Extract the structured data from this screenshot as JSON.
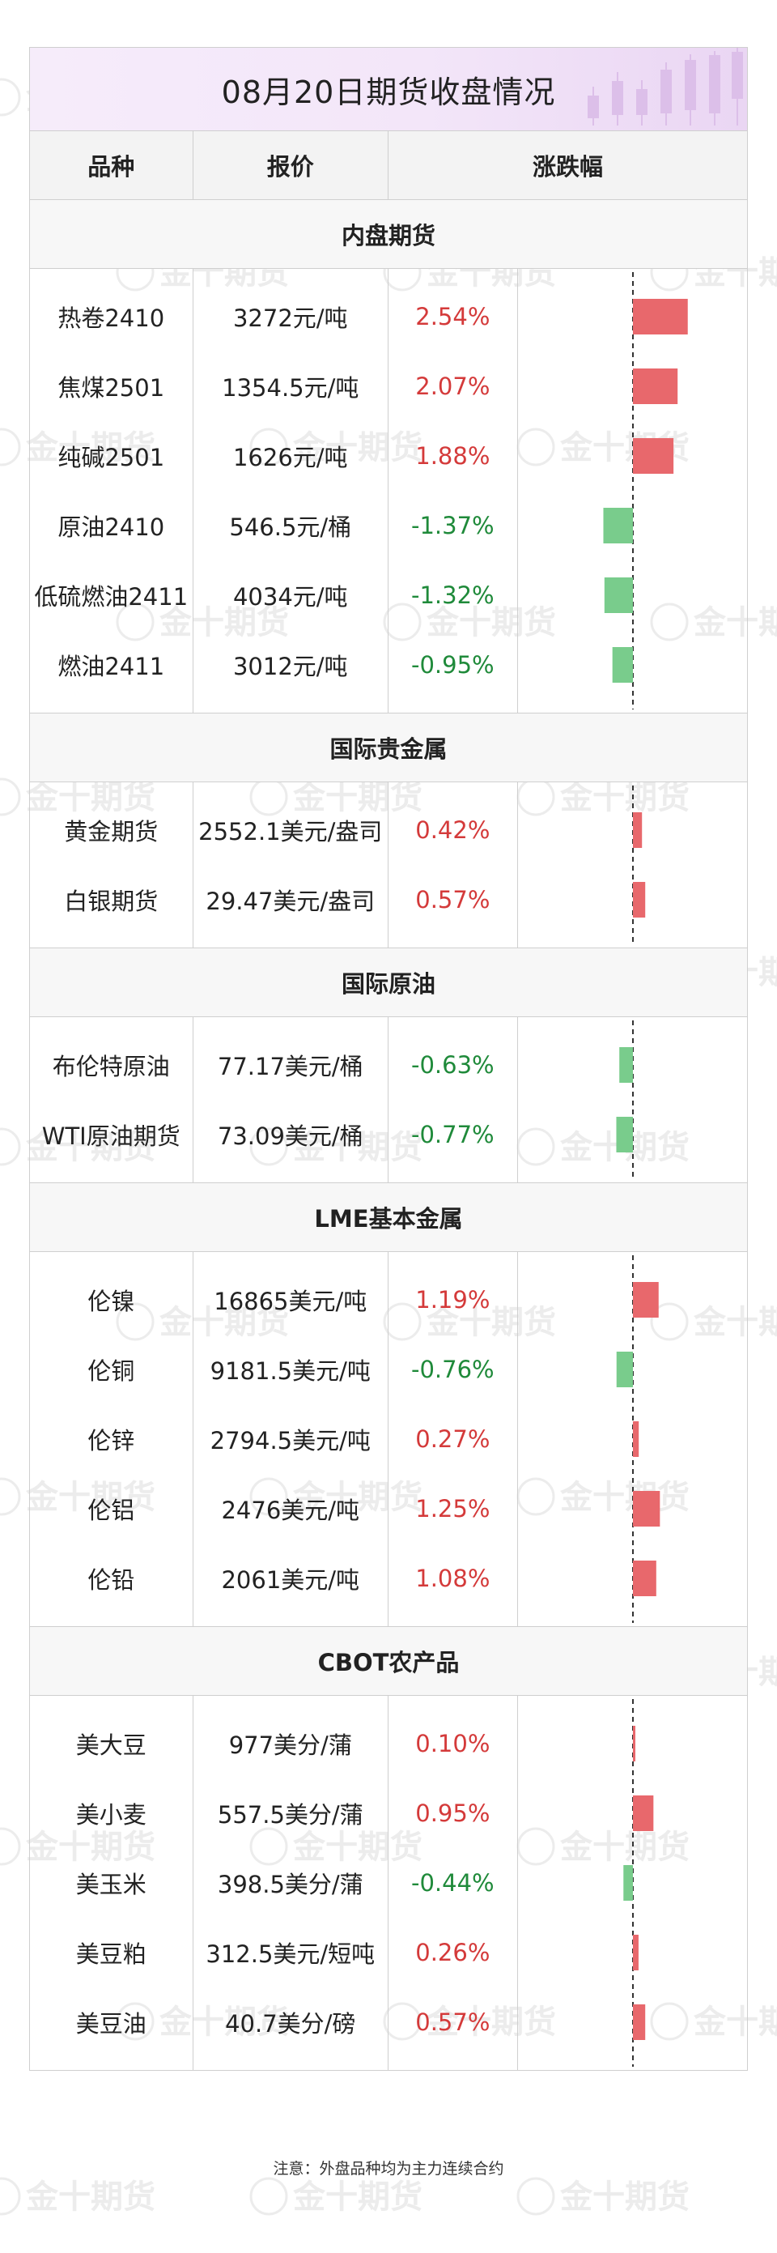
{
  "title": "08月20日期货收盘情况",
  "watermark": "金十期货",
  "header": {
    "col_name": "品种",
    "col_price": "报价",
    "col_change": "涨跌幅"
  },
  "colors": {
    "up": "#d43a3a",
    "down": "#1f8a3a",
    "bar_up": "#e8686c",
    "bar_down": "#79cc8c"
  },
  "bar_scale_max_pct": 3.0,
  "sections": [
    {
      "title": "内盘期货",
      "rows": [
        {
          "name": "热卷2410",
          "price": "3272元/吨",
          "change": "2.54%",
          "value": 2.54
        },
        {
          "name": "焦煤2501",
          "price": "1354.5元/吨",
          "change": "2.07%",
          "value": 2.07
        },
        {
          "name": "纯碱2501",
          "price": "1626元/吨",
          "change": "1.88%",
          "value": 1.88
        },
        {
          "name": "原油2410",
          "price": "546.5元/桶",
          "change": "-1.37%",
          "value": -1.37
        },
        {
          "name": "低硫燃油2411",
          "price": "4034元/吨",
          "change": "-1.32%",
          "value": -1.32
        },
        {
          "name": "燃油2411",
          "price": "3012元/吨",
          "change": "-0.95%",
          "value": -0.95
        }
      ]
    },
    {
      "title": "国际贵金属",
      "rows": [
        {
          "name": "黄金期货",
          "price": "2552.1美元/盎司",
          "change": "0.42%",
          "value": 0.42
        },
        {
          "name": "白银期货",
          "price": "29.47美元/盎司",
          "change": "0.57%",
          "value": 0.57
        }
      ]
    },
    {
      "title": "国际原油",
      "rows": [
        {
          "name": "布伦特原油",
          "price": "77.17美元/桶",
          "change": "-0.63%",
          "value": -0.63
        },
        {
          "name": "WTI原油期货",
          "price": "73.09美元/桶",
          "change": "-0.77%",
          "value": -0.77
        }
      ]
    },
    {
      "title": "LME基本金属",
      "rows": [
        {
          "name": "伦镍",
          "price": "16865美元/吨",
          "change": "1.19%",
          "value": 1.19
        },
        {
          "name": "伦铜",
          "price": "9181.5美元/吨",
          "change": "-0.76%",
          "value": -0.76
        },
        {
          "name": "伦锌",
          "price": "2794.5美元/吨",
          "change": "0.27%",
          "value": 0.27
        },
        {
          "name": "伦铝",
          "price": "2476美元/吨",
          "change": "1.25%",
          "value": 1.25
        },
        {
          "name": "伦铅",
          "price": "2061美元/吨",
          "change": "1.08%",
          "value": 1.08
        }
      ]
    },
    {
      "title": "CBOT农产品",
      "rows": [
        {
          "name": "美大豆",
          "price": "977美分/蒲",
          "change": "0.10%",
          "value": 0.1
        },
        {
          "name": "美小麦",
          "price": "557.5美分/蒲",
          "change": "0.95%",
          "value": 0.95
        },
        {
          "name": "美玉米",
          "price": "398.5美分/蒲",
          "change": "-0.44%",
          "value": -0.44
        },
        {
          "name": "美豆粕",
          "price": "312.5美元/短吨",
          "change": "0.26%",
          "value": 0.26
        },
        {
          "name": "美豆油",
          "price": "40.7美分/磅",
          "change": "0.57%",
          "value": 0.57
        }
      ]
    }
  ],
  "footer_note": "注意：外盘品种均为主力连续合约"
}
